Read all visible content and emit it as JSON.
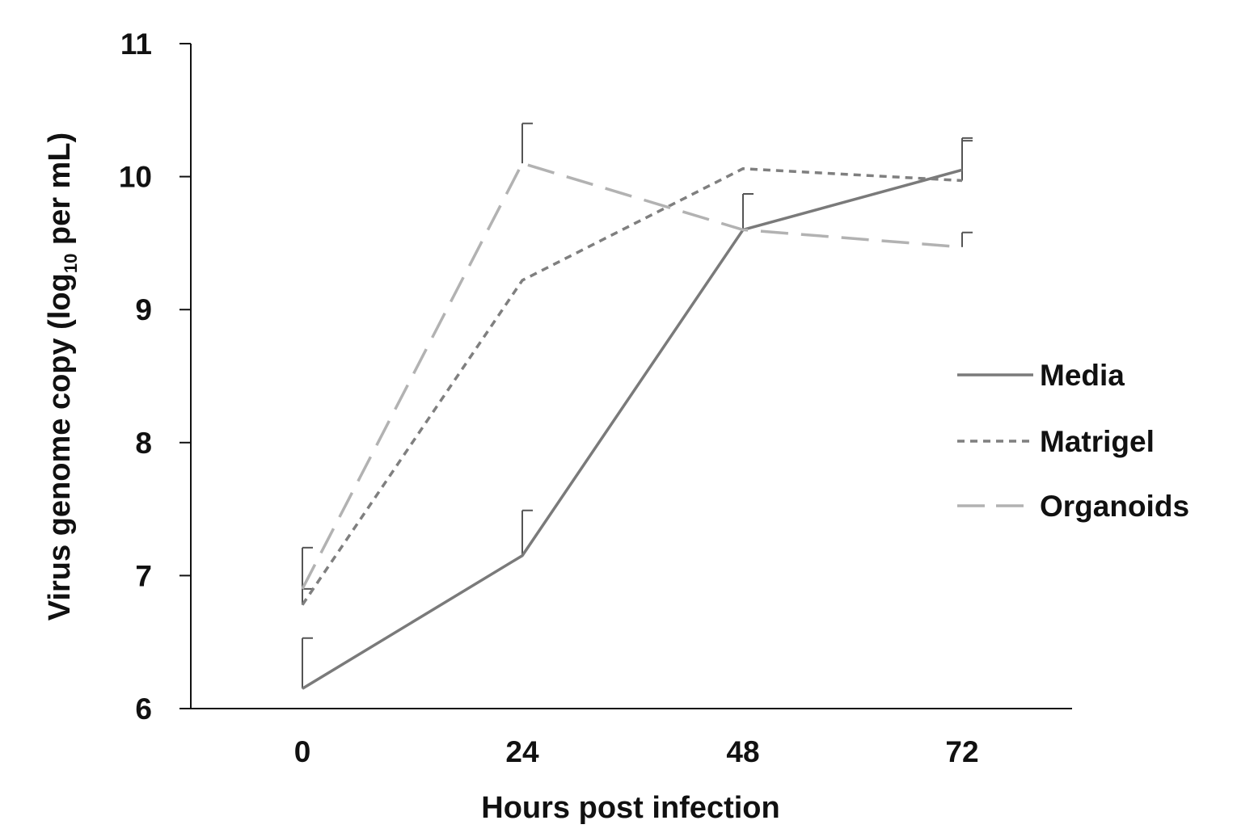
{
  "chart_data": {
    "type": "line",
    "title": "",
    "xlabel": "Hours post infection",
    "ylabel": {
      "prefix": "Virus genome  copy  (log",
      "subscript": "10",
      "suffix": " per mL)"
    },
    "x": [
      0,
      24,
      48,
      72
    ],
    "x_tick_labels": [
      "0",
      "24",
      "48",
      "72"
    ],
    "ylim": [
      6,
      11
    ],
    "y_ticks": [
      6,
      7,
      8,
      9,
      10,
      11
    ],
    "y_tick_labels": [
      "6",
      "7",
      "8",
      "9",
      "10",
      "11"
    ],
    "grid": false,
    "legend_position": "right",
    "error_bars": "upper",
    "series": [
      {
        "name": "Media",
        "style": "solid",
        "color": "#7a7a7a",
        "values": [
          6.15,
          7.15,
          9.6,
          10.05
        ],
        "errors": [
          0.38,
          0.34,
          0.27,
          0.24
        ]
      },
      {
        "name": "Matrigel",
        "style": "short-dash",
        "color": "#7f7f7f",
        "values": [
          6.78,
          9.22,
          10.06,
          9.97
        ],
        "errors": [
          0.12,
          0.0,
          0.0,
          0.3
        ]
      },
      {
        "name": "Organoids",
        "style": "long-dash",
        "color": "#b2b2b2",
        "values": [
          6.9,
          10.1,
          9.6,
          9.47
        ],
        "errors": [
          0.31,
          0.3,
          0.0,
          0.11
        ]
      }
    ]
  }
}
